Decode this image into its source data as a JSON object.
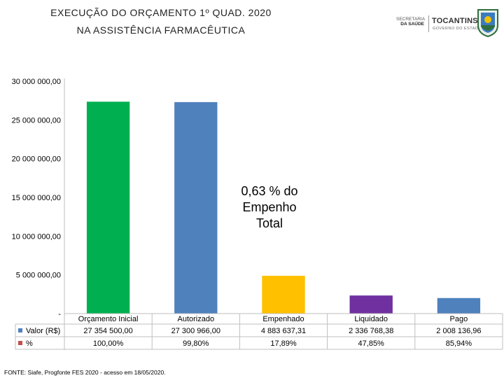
{
  "header": {
    "title_line1": "EXECUÇÃO DO ORÇAMENTO 1º QUAD. 2020",
    "title_line2": "NA ASSISTÊNCIA FARMACÊUTICA"
  },
  "logos": {
    "secretaria_line1": "SECRETARIA",
    "secretaria_line2": "DA SAÚDE",
    "tocantins": "TOCANTINS",
    "governo": "GOVERNO DO ESTADO"
  },
  "chart_data": {
    "type": "bar",
    "title": "EXECUÇÃO DO ORÇAMENTO 1º QUAD. 2020 NA ASSISTÊNCIA FARMACÊUTICA",
    "categories": [
      "Orçamento Inicial",
      "Autorizado",
      "Empenhado",
      "Liquidado",
      "Pago"
    ],
    "values": [
      27354500.0,
      27300966.0,
      4883637.31,
      2336768.38,
      2008136.96
    ],
    "colors": [
      "#00b050",
      "#4f81bd",
      "#ffc000",
      "#7030a0",
      "#4f81bd"
    ],
    "ylim": [
      0,
      30000000
    ],
    "yticks": [
      0,
      5000000,
      10000000,
      15000000,
      20000000,
      25000000,
      30000000
    ],
    "ytick_labels": [
      "-",
      "5 000 000,00",
      "10 000 000,00",
      "15 000 000,00",
      "20 000 000,00",
      "25 000 000,00",
      "30 000 000,00"
    ],
    "grid": false,
    "data_table": {
      "rows": [
        {
          "label": "Valor (R$)",
          "legend_color": "#4f81bd",
          "cells": [
            "27 354 500,00",
            "27 300 966,00",
            "4 883 637,31",
            "2 336 768,38",
            "2 008 136,96"
          ]
        },
        {
          "label": "%",
          "legend_color": "#c0504d",
          "cells": [
            "100,00%",
            "99,80%",
            "17,89%",
            "47,85%",
            "85,94%"
          ]
        }
      ]
    },
    "annotation_lines": [
      "0,63 % do",
      "Empenho",
      "Total"
    ]
  },
  "footer": {
    "source": "FONTE: Siafe, Progfonte FES 2020 - acesso em 18/05/2020."
  }
}
